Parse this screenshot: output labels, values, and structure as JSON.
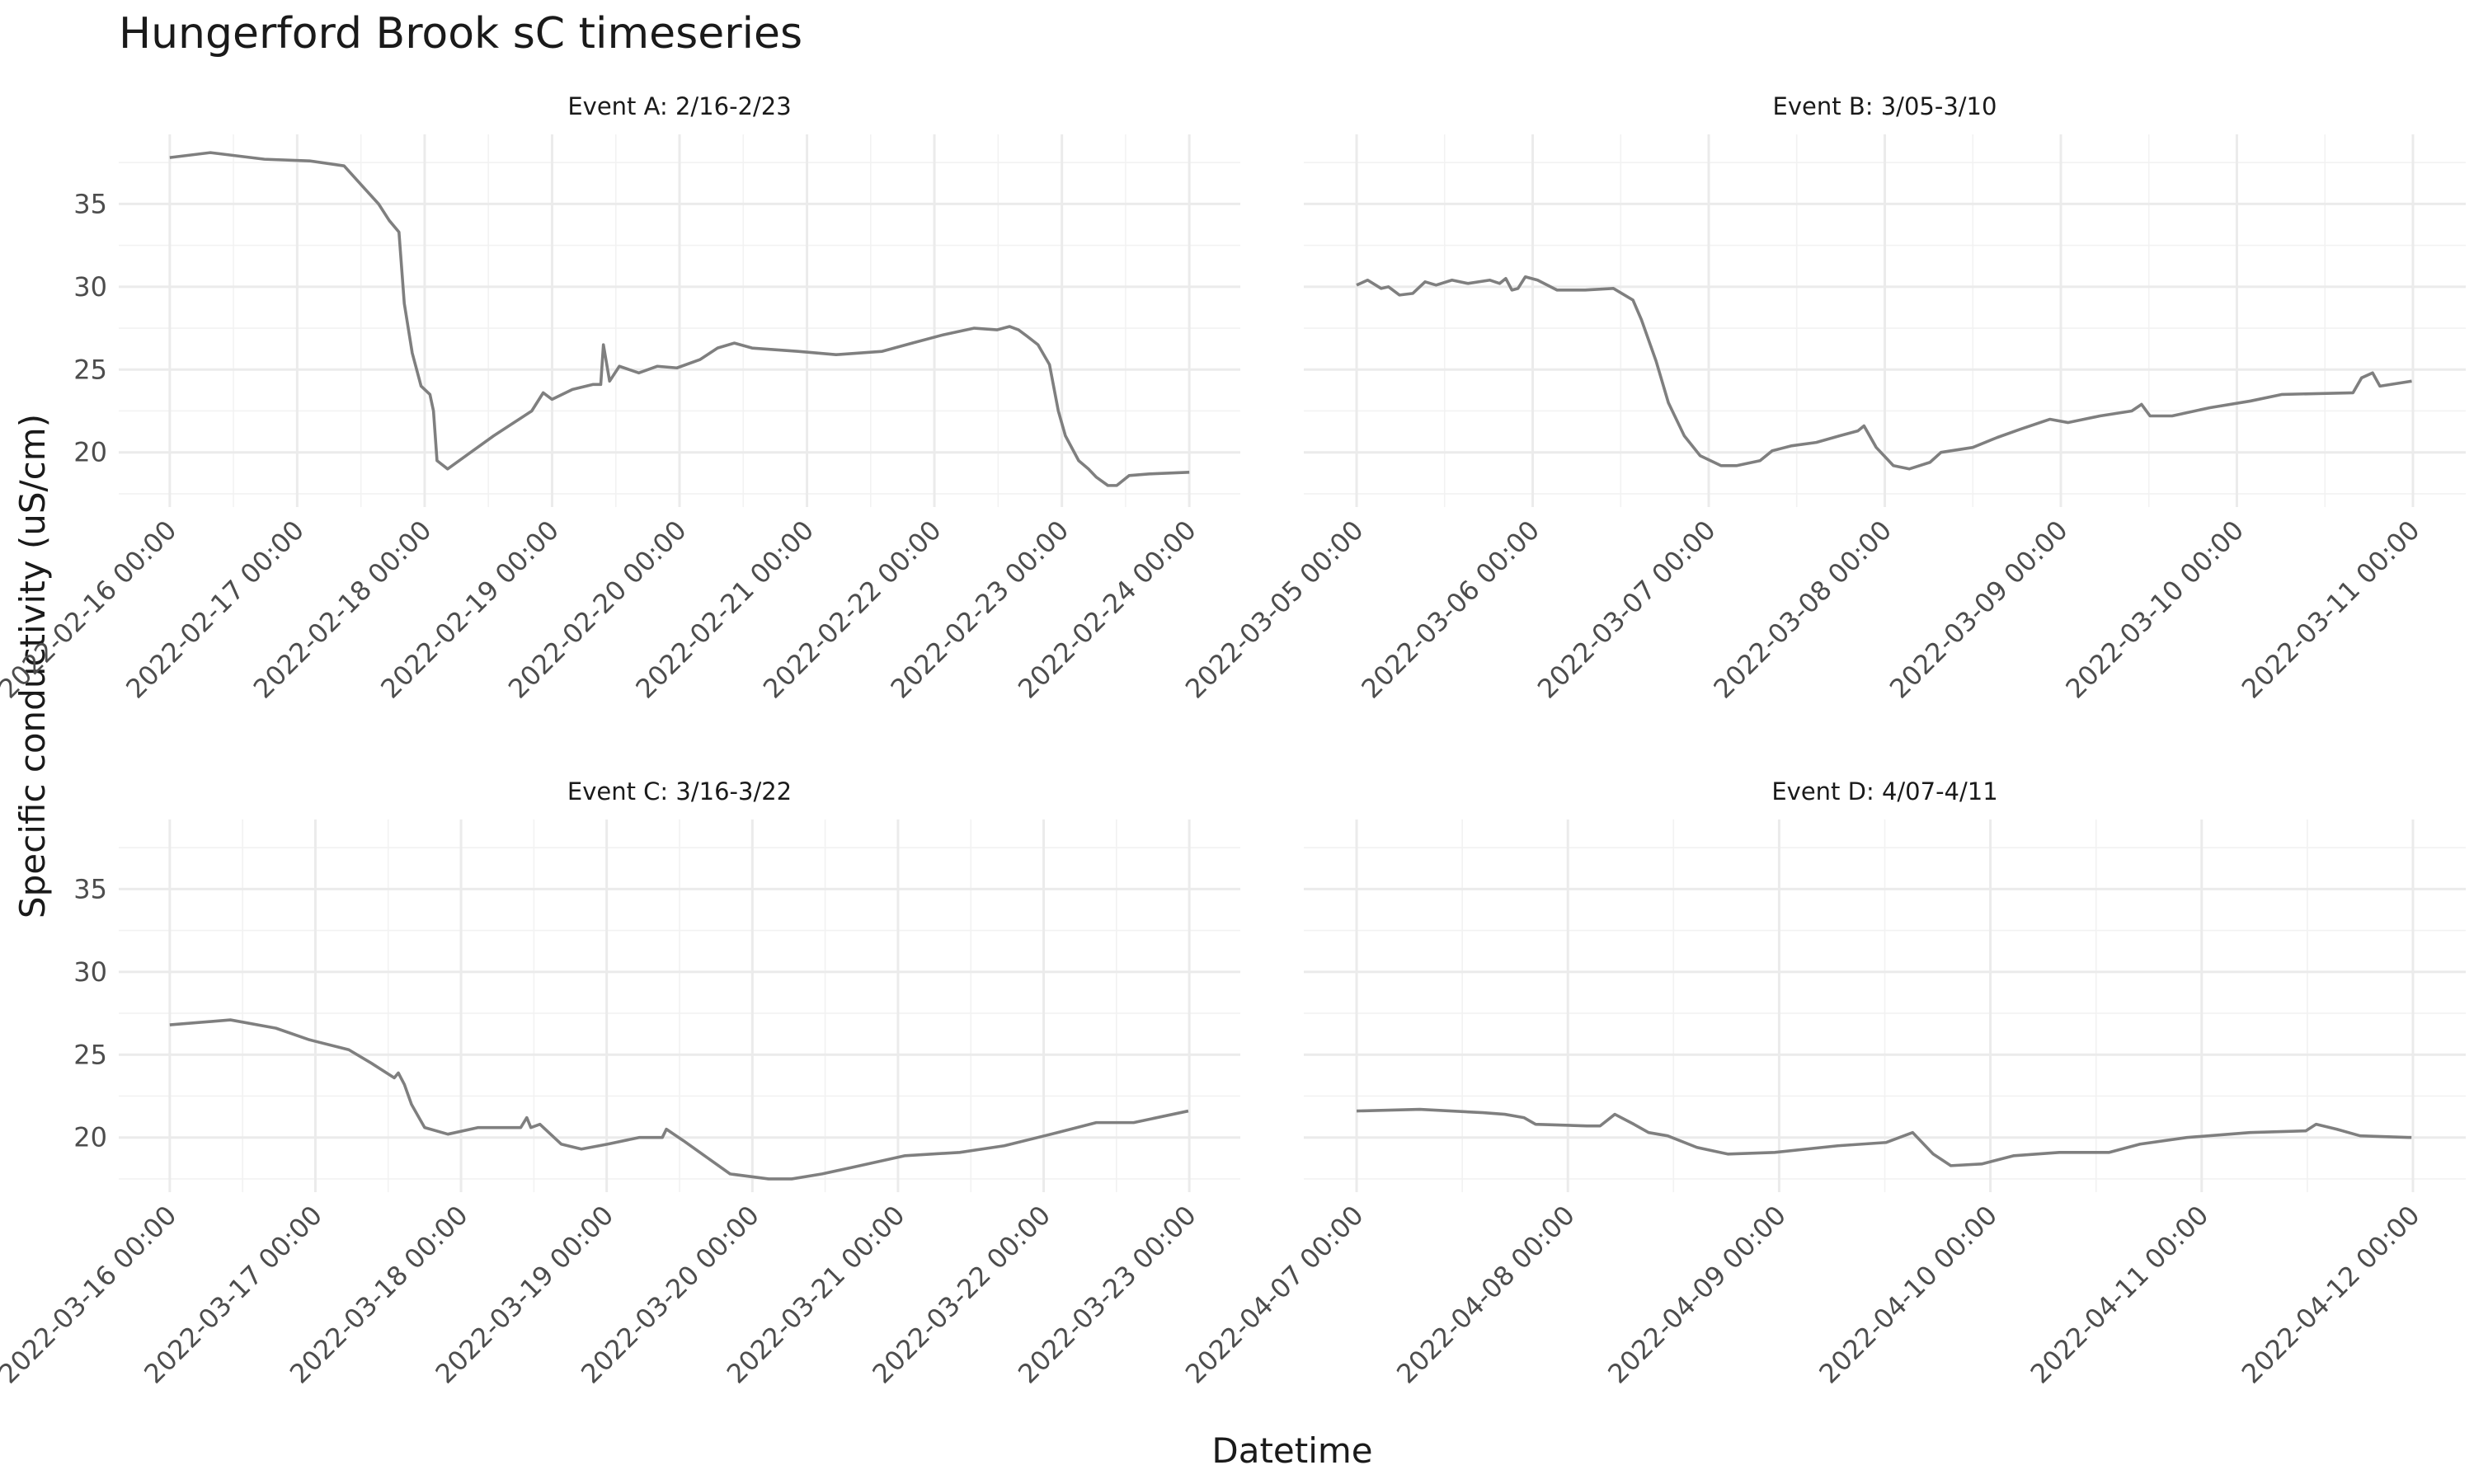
{
  "title": "Hungerford Brook sC timeseries",
  "x_label": "Datetime",
  "y_label": "Specific conductivity (uS/cm)",
  "chart_data": [
    {
      "type": "line",
      "title": "Event A: 2/16-2/23",
      "x": [
        "2022-02-16 00:00",
        "2022-02-16 07:40",
        "2022-02-16 17:50",
        "2022-02-17 02:20",
        "2022-02-17 08:50",
        "2022-02-17 12:30",
        "2022-02-17 15:20",
        "2022-02-17 17:20",
        "2022-02-17 19:10",
        "2022-02-17 20:10",
        "2022-02-17 21:40",
        "2022-02-17 23:20",
        "2022-02-18 01:00",
        "2022-02-18 01:40",
        "2022-02-18 02:20",
        "2022-02-18 04:20",
        "2022-02-18 08:40",
        "2022-02-18 13:00",
        "2022-02-18 16:50",
        "2022-02-18 20:10",
        "2022-02-18 22:20",
        "2022-02-19 00:00",
        "2022-02-19 03:50",
        "2022-02-19 07:40",
        "2022-02-19 09:10",
        "2022-02-19 09:40",
        "2022-02-19 10:50",
        "2022-02-19 12:40",
        "2022-02-19 16:20",
        "2022-02-19 19:50",
        "2022-02-19 23:30",
        "2022-02-20 03:50",
        "2022-02-20 07:10",
        "2022-02-20 10:20",
        "2022-02-20 13:40",
        "2022-02-20 22:20",
        "2022-02-21 05:30",
        "2022-02-21 14:10",
        "2022-02-21 19:50",
        "2022-02-22 01:40",
        "2022-02-22 07:30",
        "2022-02-22 11:50",
        "2022-02-22 14:10",
        "2022-02-22 15:50",
        "2022-02-22 17:30",
        "2022-02-22 19:30",
        "2022-02-22 21:40",
        "2022-02-22 23:20",
        "2022-02-23 00:40",
        "2022-02-23 03:10",
        "2022-02-23 05:00",
        "2022-02-23 06:30",
        "2022-02-23 08:40",
        "2022-02-23 10:20",
        "2022-02-23 12:40",
        "2022-02-23 16:30",
        "2022-02-24 00:00"
      ],
      "series": [
        {
          "color": "#7f7f7f",
          "values": [
            37.8,
            38.1,
            37.7,
            37.6,
            37.3,
            36.0,
            35.0,
            34.0,
            33.3,
            29.0,
            26.0,
            24.0,
            23.5,
            22.5,
            19.5,
            19.0,
            20.0,
            21.0,
            21.8,
            22.5,
            23.6,
            23.2,
            23.8,
            24.1,
            24.1,
            26.5,
            24.3,
            25.2,
            24.8,
            25.2,
            25.1,
            25.6,
            26.3,
            26.6,
            26.3,
            26.1,
            25.9,
            26.1,
            26.6,
            27.1,
            27.5,
            27.4,
            27.6,
            27.4,
            27.0,
            26.5,
            25.3,
            22.5,
            21.0,
            19.5,
            19.0,
            18.5,
            18.0,
            18.0,
            18.6,
            18.7,
            18.8
          ]
        }
      ],
      "xlim": [
        "2022-02-15 14:24",
        "2022-02-24 09:36"
      ],
      "xticks": [
        "2022-02-16 00:00",
        "2022-02-17 00:00",
        "2022-02-18 00:00",
        "2022-02-19 00:00",
        "2022-02-20 00:00",
        "2022-02-21 00:00",
        "2022-02-22 00:00",
        "2022-02-23 00:00",
        "2022-02-24 00:00"
      ],
      "ylim": [
        16.7,
        39.2
      ],
      "yticks": [
        20,
        25,
        30,
        35
      ],
      "grid": true
    },
    {
      "type": "line",
      "title": "Event B: 3/05-3/10",
      "x": [
        "2022-03-05 00:00",
        "2022-03-05 01:30",
        "2022-03-05 03:20",
        "2022-03-05 04:20",
        "2022-03-05 05:50",
        "2022-03-05 07:40",
        "2022-03-05 09:20",
        "2022-03-05 10:50",
        "2022-03-05 13:00",
        "2022-03-05 15:10",
        "2022-03-05 18:10",
        "2022-03-05 19:30",
        "2022-03-05 20:20",
        "2022-03-05 21:10",
        "2022-03-05 22:00",
        "2022-03-05 23:00",
        "2022-03-06 00:40",
        "2022-03-06 03:20",
        "2022-03-06 07:10",
        "2022-03-06 11:00",
        "2022-03-06 13:40",
        "2022-03-06 14:50",
        "2022-03-06 16:50",
        "2022-03-06 18:30",
        "2022-03-06 20:40",
        "2022-03-06 22:50",
        "2022-03-07 01:40",
        "2022-03-07 03:50",
        "2022-03-07 07:00",
        "2022-03-07 08:40",
        "2022-03-07 11:20",
        "2022-03-07 14:40",
        "2022-03-07 17:50",
        "2022-03-07 20:20",
        "2022-03-07 21:10",
        "2022-03-07 22:50",
        "2022-03-08 01:10",
        "2022-03-08 03:20",
        "2022-03-08 06:10",
        "2022-03-08 07:40",
        "2022-03-08 12:00",
        "2022-03-08 15:20",
        "2022-03-08 18:30",
        "2022-03-08 22:30",
        "2022-03-09 01:00",
        "2022-03-09 05:20",
        "2022-03-09 09:40",
        "2022-03-09 11:00",
        "2022-03-09 12:10",
        "2022-03-09 15:10",
        "2022-03-09 20:20",
        "2022-03-10 01:50",
        "2022-03-10 06:10",
        "2022-03-10 15:50",
        "2022-03-10 17:00",
        "2022-03-10 18:30",
        "2022-03-10 19:30",
        "2022-03-10 23:50"
      ],
      "series": [
        {
          "color": "#7f7f7f",
          "values": [
            30.1,
            30.4,
            29.9,
            30.0,
            29.5,
            29.6,
            30.3,
            30.1,
            30.4,
            30.2,
            30.4,
            30.2,
            30.5,
            29.8,
            29.9,
            30.6,
            30.4,
            29.8,
            29.8,
            29.9,
            29.2,
            28.0,
            25.5,
            23.0,
            21.0,
            19.8,
            19.2,
            19.2,
            19.5,
            20.1,
            20.4,
            20.6,
            21.0,
            21.3,
            21.6,
            20.3,
            19.2,
            19.0,
            19.4,
            20.0,
            20.3,
            20.9,
            21.4,
            22.0,
            21.8,
            22.2,
            22.5,
            22.9,
            22.2,
            22.2,
            22.7,
            23.1,
            23.5,
            23.6,
            24.5,
            24.8,
            24.0,
            24.3
          ]
        }
      ],
      "xlim": [
        "2022-03-04 16:48",
        "2022-03-11 07:12"
      ],
      "xticks": [
        "2022-03-05 00:00",
        "2022-03-06 00:00",
        "2022-03-07 00:00",
        "2022-03-08 00:00",
        "2022-03-09 00:00",
        "2022-03-10 00:00",
        "2022-03-11 00:00"
      ],
      "ylim": [
        16.7,
        39.2
      ],
      "yticks": [
        20,
        25,
        30,
        35
      ],
      "grid": true
    },
    {
      "type": "line",
      "title": "Event C: 3/16-3/22",
      "x": [
        "2022-03-16 00:00",
        "2022-03-16 10:00",
        "2022-03-16 17:30",
        "2022-03-16 23:00",
        "2022-03-17 05:30",
        "2022-03-17 09:10",
        "2022-03-17 13:00",
        "2022-03-17 13:40",
        "2022-03-17 14:40",
        "2022-03-17 15:50",
        "2022-03-17 18:00",
        "2022-03-17 21:50",
        "2022-03-18 02:50",
        "2022-03-18 09:50",
        "2022-03-18 10:50",
        "2022-03-18 11:30",
        "2022-03-18 13:00",
        "2022-03-18 16:30",
        "2022-03-18 19:50",
        "2022-03-19 00:10",
        "2022-03-19 05:20",
        "2022-03-19 09:10",
        "2022-03-19 09:50",
        "2022-03-19 12:40",
        "2022-03-19 16:30",
        "2022-03-19 20:20",
        "2022-03-20 02:40",
        "2022-03-20 06:30",
        "2022-03-20 11:30",
        "2022-03-20 16:30",
        "2022-03-21 01:10",
        "2022-03-21 10:10",
        "2022-03-21 17:30",
        "2022-03-22 02:20",
        "2022-03-22 08:40",
        "2022-03-22 14:50",
        "2022-03-22 23:50"
      ],
      "series": [
        {
          "color": "#7f7f7f",
          "values": [
            26.8,
            27.1,
            26.6,
            25.9,
            25.3,
            24.5,
            23.6,
            23.9,
            23.2,
            22.0,
            20.6,
            20.2,
            20.6,
            20.6,
            21.2,
            20.6,
            20.8,
            19.6,
            19.3,
            19.6,
            20.0,
            20.0,
            20.5,
            19.8,
            18.8,
            17.8,
            17.5,
            17.5,
            17.8,
            18.2,
            18.9,
            19.1,
            19.5,
            20.3,
            20.9,
            20.9,
            21.6
          ]
        }
      ],
      "xlim": [
        "2022-03-15 15:36",
        "2022-03-23 08:24"
      ],
      "xticks": [
        "2022-03-16 00:00",
        "2022-03-17 00:00",
        "2022-03-18 00:00",
        "2022-03-19 00:00",
        "2022-03-20 00:00",
        "2022-03-21 00:00",
        "2022-03-22 00:00",
        "2022-03-23 00:00"
      ],
      "ylim": [
        16.7,
        39.2
      ],
      "yticks": [
        20,
        25,
        30,
        35
      ],
      "grid": true
    },
    {
      "type": "line",
      "title": "Event D: 4/07-4/11",
      "x": [
        "2022-04-07 00:00",
        "2022-04-07 07:10",
        "2022-04-07 14:20",
        "2022-04-07 16:50",
        "2022-04-07 19:00",
        "2022-04-07 20:20",
        "2022-04-08 02:10",
        "2022-04-08 03:40",
        "2022-04-08 05:20",
        "2022-04-08 07:30",
        "2022-04-08 09:10",
        "2022-04-08 11:20",
        "2022-04-08 14:40",
        "2022-04-08 18:10",
        "2022-04-08 23:30",
        "2022-04-09 06:40",
        "2022-04-09 12:10",
        "2022-04-09 15:10",
        "2022-04-09 17:30",
        "2022-04-09 19:30",
        "2022-04-09 23:00",
        "2022-04-10 02:40",
        "2022-04-10 07:50",
        "2022-04-10 13:30",
        "2022-04-10 17:00",
        "2022-04-10 22:20",
        "2022-04-11 05:30",
        "2022-04-11 11:50",
        "2022-04-11 13:00",
        "2022-04-11 15:20",
        "2022-04-11 18:00",
        "2022-04-11 23:50"
      ],
      "series": [
        {
          "color": "#7f7f7f",
          "values": [
            21.6,
            21.7,
            21.5,
            21.4,
            21.2,
            20.8,
            20.7,
            20.7,
            21.4,
            20.8,
            20.3,
            20.1,
            19.4,
            19.0,
            19.1,
            19.5,
            19.7,
            20.3,
            19.0,
            18.3,
            18.4,
            18.9,
            19.1,
            19.1,
            19.6,
            20.0,
            20.3,
            20.4,
            20.8,
            20.5,
            20.1,
            20.0
          ]
        }
      ],
      "xlim": [
        "2022-04-06 18:00",
        "2022-04-12 06:00"
      ],
      "xticks": [
        "2022-04-07 00:00",
        "2022-04-08 00:00",
        "2022-04-09 00:00",
        "2022-04-10 00:00",
        "2022-04-11 00:00",
        "2022-04-12 00:00"
      ],
      "ylim": [
        16.7,
        39.2
      ],
      "yticks": [
        20,
        25,
        30,
        35
      ],
      "grid": true
    }
  ]
}
